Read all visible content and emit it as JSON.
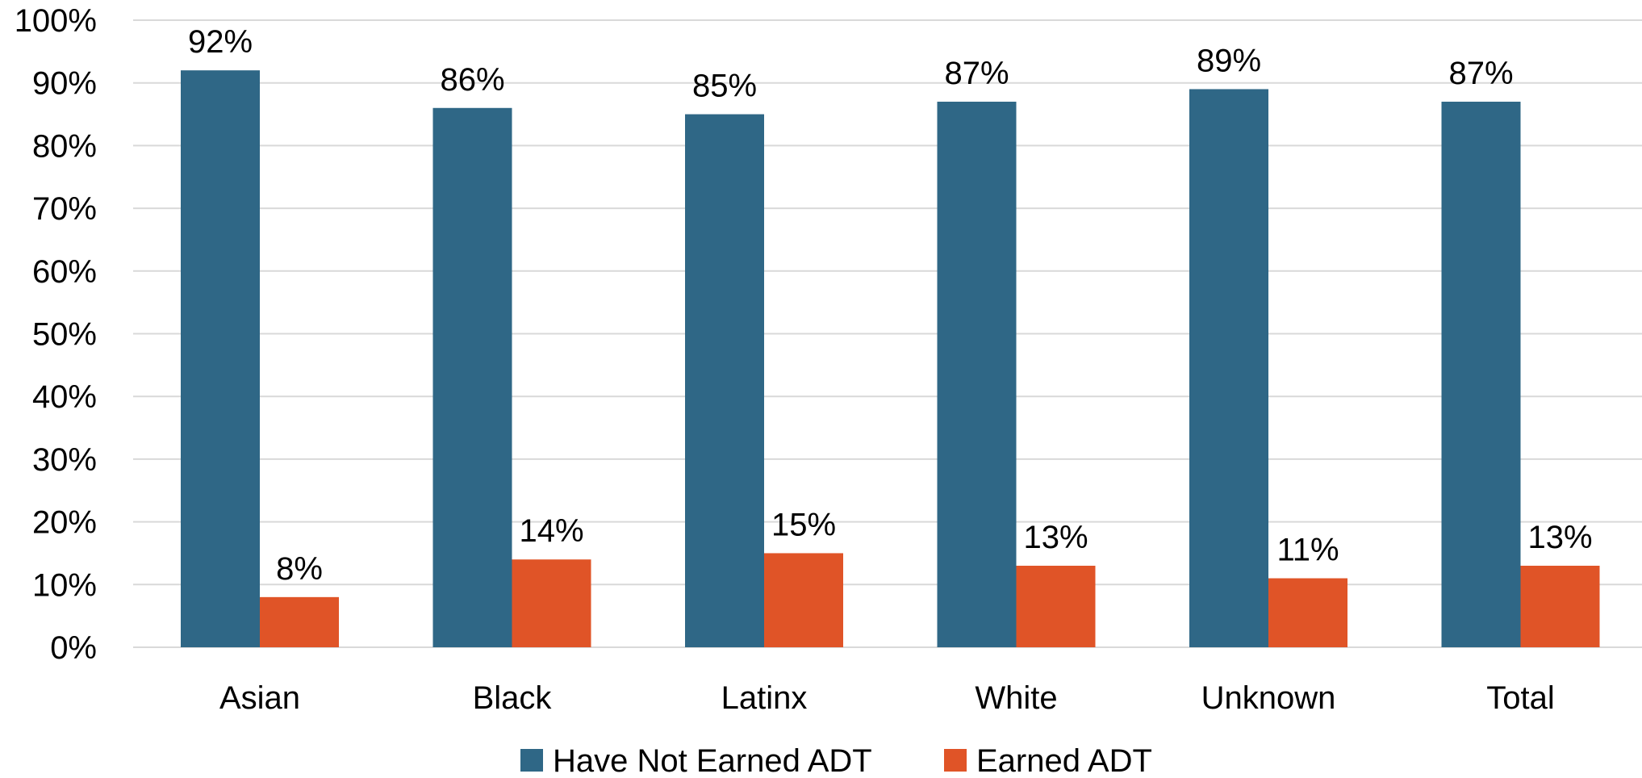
{
  "chart_data": {
    "type": "bar",
    "categories": [
      "Asian",
      "Black",
      "Latinx",
      "White",
      "Unknown",
      "Total"
    ],
    "series": [
      {
        "name": "Have Not Earned ADT",
        "values": [
          92,
          86,
          85,
          87,
          89,
          87
        ],
        "labels": [
          "92%",
          "86%",
          "85%",
          "87%",
          "89%",
          "87%"
        ],
        "color": "#2f6786"
      },
      {
        "name": "Earned ADT",
        "values": [
          8,
          14,
          15,
          13,
          11,
          13
        ],
        "labels": [
          "8%",
          "14%",
          "15%",
          "13%",
          "11%",
          "13%"
        ],
        "color": "#e05427"
      }
    ],
    "yticks": [
      0,
      10,
      20,
      30,
      40,
      50,
      60,
      70,
      80,
      90,
      100
    ],
    "ytick_labels": [
      "0%",
      "10%",
      "20%",
      "30%",
      "40%",
      "50%",
      "60%",
      "70%",
      "80%",
      "90%",
      "100%"
    ],
    "ylim": [
      0,
      100
    ],
    "grid": true,
    "legend_position": "bottom"
  }
}
